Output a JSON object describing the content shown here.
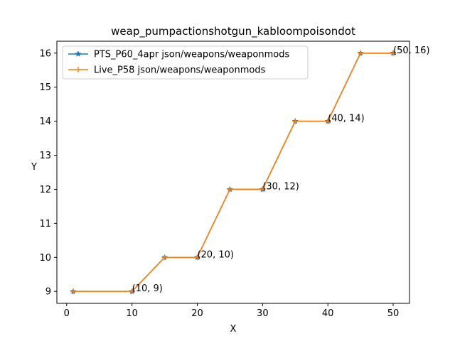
{
  "chart_data": {
    "type": "line",
    "title": "weap_pumpactionshotgun_kabloompoisondot",
    "xlabel": "X",
    "ylabel": "Y",
    "xlim": [
      -1.5,
      52.5
    ],
    "ylim": [
      8.65,
      16.35
    ],
    "xticks": [
      0,
      10,
      20,
      30,
      40,
      50
    ],
    "yticks": [
      9,
      10,
      11,
      12,
      13,
      14,
      15,
      16
    ],
    "grid": false,
    "legend_position": "upper-left",
    "x": [
      1,
      10,
      15,
      20,
      25,
      30,
      35,
      40,
      45,
      50
    ],
    "series": [
      {
        "name": "PTS_P60_4apr json/weapons/weaponmods",
        "values": [
          9,
          9,
          10,
          10,
          12,
          12,
          14,
          14,
          16,
          16
        ],
        "color": "#1f77b4",
        "marker": "star"
      },
      {
        "name": "Live_P58 json/weapons/weaponmods",
        "values": [
          9,
          9,
          10,
          10,
          12,
          12,
          14,
          14,
          16,
          16
        ],
        "color": "#ff7f0e",
        "marker": "plus"
      }
    ],
    "annotations": [
      {
        "x": 10,
        "y": 9,
        "text": "(10, 9)"
      },
      {
        "x": 20,
        "y": 10,
        "text": "(20, 10)"
      },
      {
        "x": 30,
        "y": 12,
        "text": "(30, 12)"
      },
      {
        "x": 40,
        "y": 14,
        "text": "(40, 14)"
      },
      {
        "x": 50,
        "y": 16,
        "text": "(50, 16)"
      }
    ]
  }
}
